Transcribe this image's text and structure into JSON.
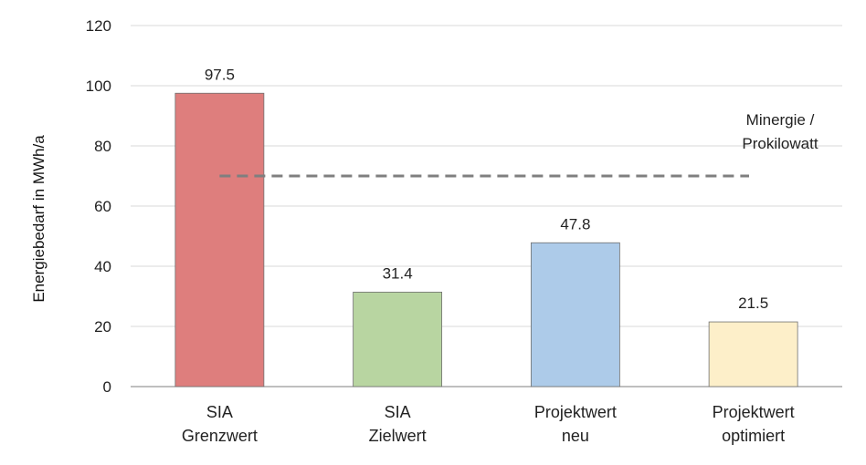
{
  "chart_data": {
    "type": "bar",
    "title": "",
    "xlabel": "",
    "ylabel": "Energiebedarf in MWh/a",
    "ylim": [
      0,
      120
    ],
    "yticks": [
      0,
      20,
      40,
      60,
      80,
      100,
      120
    ],
    "grid": true,
    "categories": [
      [
        "SIA",
        "Grenzwert"
      ],
      [
        "SIA",
        "Zielwert"
      ],
      [
        "Projektwert",
        "neu"
      ],
      [
        "Projektwert",
        "optimiert"
      ]
    ],
    "values": [
      97.5,
      31.4,
      47.8,
      21.5
    ],
    "data_labels": [
      "97.5",
      "31.4",
      "47.8",
      "21.5"
    ],
    "colors": [
      "#de7e7d",
      "#b8d5a1",
      "#adcbe9",
      "#fdefc9"
    ],
    "reference_line": {
      "value": 70,
      "label": [
        "Minergie /",
        "Prokilowatt"
      ],
      "color": "#7f7f7f",
      "style": "dashed"
    }
  }
}
